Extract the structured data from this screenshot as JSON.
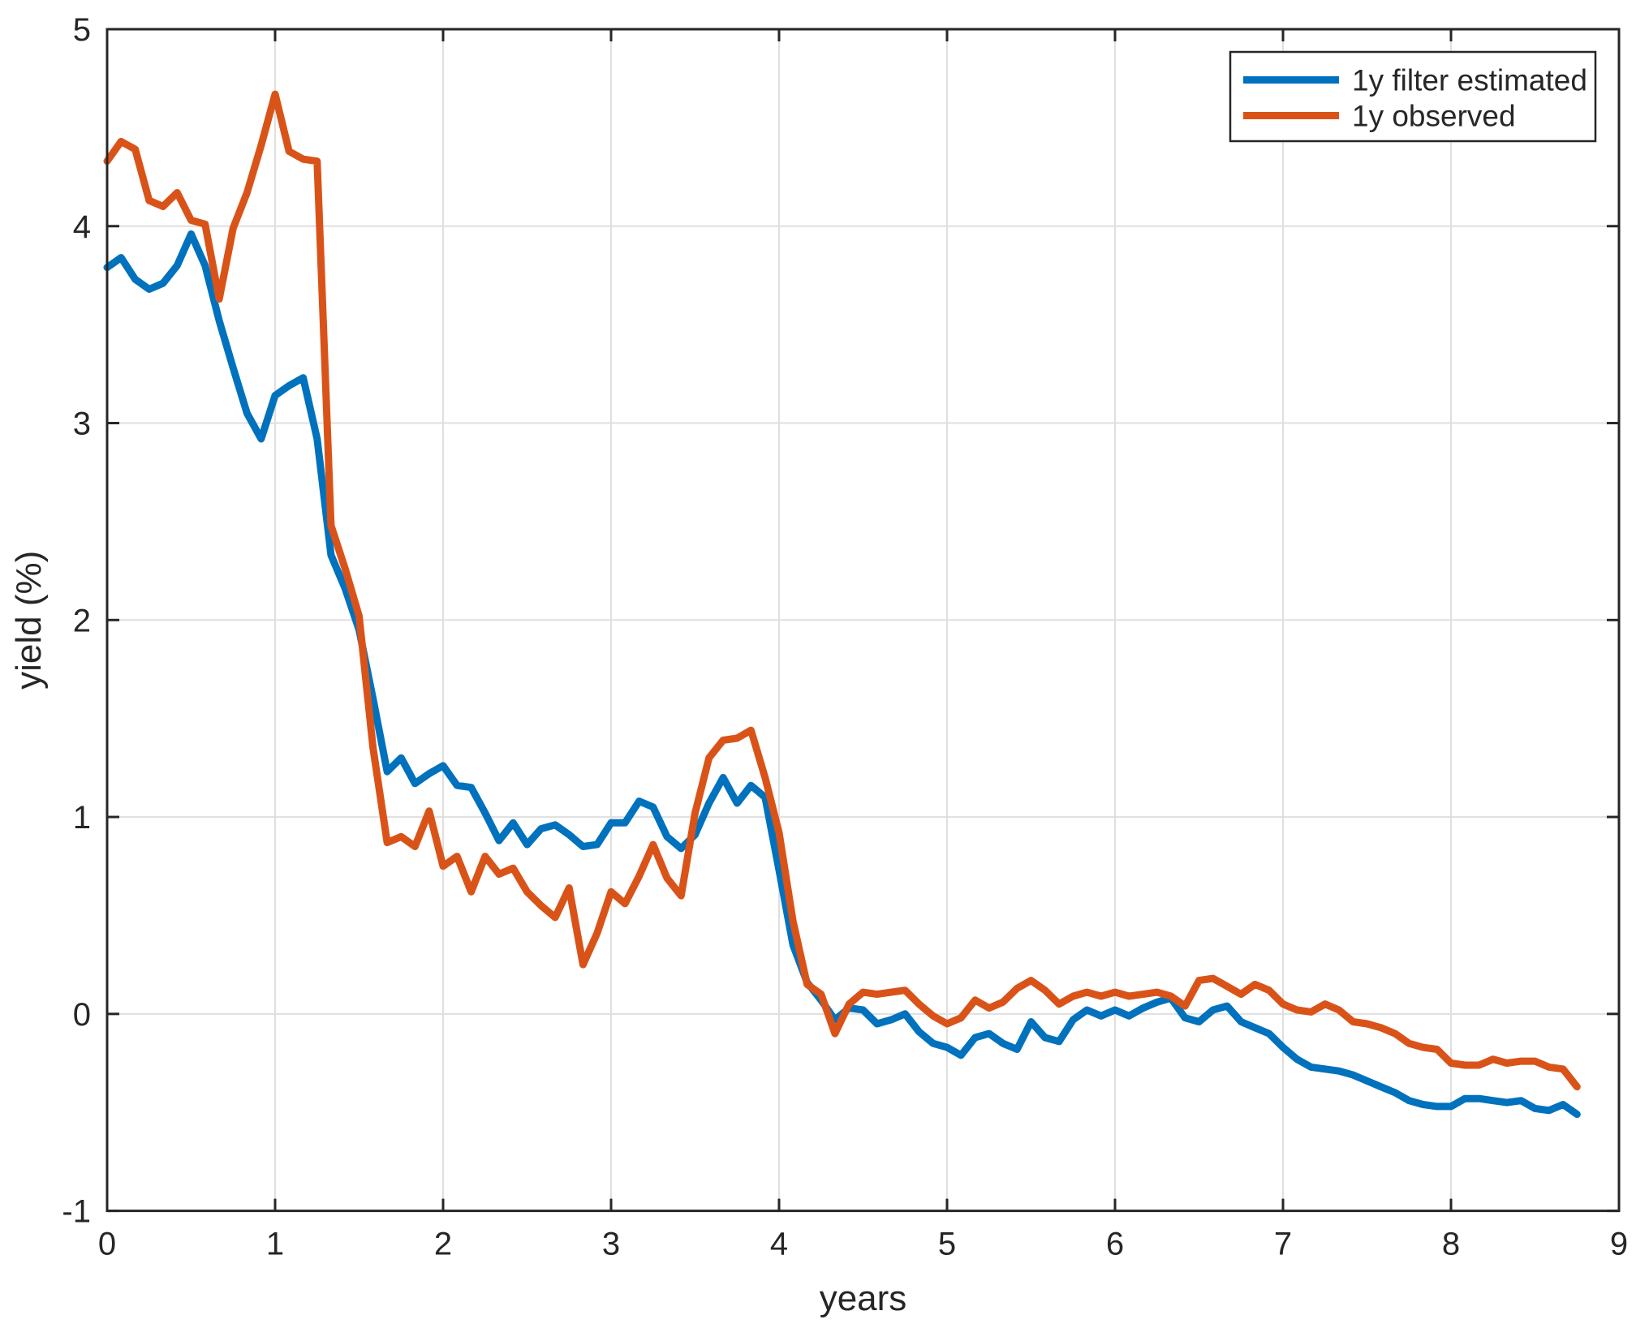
{
  "figure": {
    "background_color": "#ffffff",
    "axis_color": "#262626",
    "grid_color": "#dfdfdf"
  },
  "chart_data": {
    "type": "line",
    "title": "",
    "xlabel": "years",
    "ylabel": "yield (%)",
    "xlim": [
      0,
      9
    ],
    "ylim": [
      -1,
      5
    ],
    "xticks": [
      0,
      1,
      2,
      3,
      4,
      5,
      6,
      7,
      8,
      9
    ],
    "yticks": [
      -1,
      0,
      1,
      2,
      3,
      4,
      5
    ],
    "grid": true,
    "legend_position": "top-right",
    "x": [
      0,
      0.083,
      0.167,
      0.25,
      0.333,
      0.417,
      0.5,
      0.583,
      0.667,
      0.75,
      0.833,
      0.917,
      1,
      1.083,
      1.167,
      1.25,
      1.333,
      1.417,
      1.5,
      1.583,
      1.667,
      1.75,
      1.833,
      1.917,
      2,
      2.083,
      2.167,
      2.25,
      2.333,
      2.417,
      2.5,
      2.583,
      2.667,
      2.75,
      2.833,
      2.917,
      3,
      3.083,
      3.167,
      3.25,
      3.333,
      3.417,
      3.5,
      3.583,
      3.667,
      3.75,
      3.833,
      3.917,
      4,
      4.083,
      4.167,
      4.25,
      4.333,
      4.417,
      4.5,
      4.583,
      4.667,
      4.75,
      4.833,
      4.917,
      5,
      5.083,
      5.167,
      5.25,
      5.333,
      5.417,
      5.5,
      5.583,
      5.667,
      5.75,
      5.833,
      5.917,
      6,
      6.083,
      6.167,
      6.25,
      6.333,
      6.417,
      6.5,
      6.583,
      6.667,
      6.75,
      6.833,
      6.917,
      7,
      7.083,
      7.167,
      7.25,
      7.333,
      7.417,
      7.5,
      7.583,
      7.667,
      7.75,
      7.833,
      7.917,
      8,
      8.083,
      8.167,
      8.25,
      8.333,
      8.417,
      8.5,
      8.583,
      8.667,
      8.75
    ],
    "series": [
      {
        "name": "1y filter estimated",
        "color": "#0072BD",
        "values": [
          3.79,
          3.84,
          3.73,
          3.68,
          3.71,
          3.8,
          3.96,
          3.8,
          3.52,
          3.28,
          3.05,
          2.92,
          3.14,
          3.19,
          3.23,
          2.92,
          2.33,
          2.16,
          1.95,
          1.6,
          1.23,
          1.3,
          1.17,
          1.22,
          1.26,
          1.16,
          1.15,
          1.02,
          0.88,
          0.97,
          0.86,
          0.94,
          0.96,
          0.91,
          0.85,
          0.86,
          0.97,
          0.97,
          1.08,
          1.05,
          0.9,
          0.84,
          0.91,
          1.07,
          1.2,
          1.07,
          1.16,
          1.1,
          0.73,
          0.35,
          0.16,
          0.07,
          -0.03,
          0.03,
          0.02,
          -0.05,
          -0.03,
          0.0,
          -0.09,
          -0.15,
          -0.17,
          -0.21,
          -0.12,
          -0.1,
          -0.15,
          -0.18,
          -0.04,
          -0.12,
          -0.14,
          -0.03,
          0.02,
          -0.01,
          0.02,
          -0.01,
          0.03,
          0.06,
          0.08,
          -0.02,
          -0.04,
          0.02,
          0.04,
          -0.04,
          -0.07,
          -0.1,
          -0.17,
          -0.23,
          -0.27,
          -0.28,
          -0.29,
          -0.31,
          -0.34,
          -0.37,
          -0.4,
          -0.44,
          -0.46,
          -0.47,
          -0.47,
          -0.43,
          -0.43,
          -0.44,
          -0.45,
          -0.44,
          -0.48,
          -0.49,
          -0.46,
          -0.51
        ]
      },
      {
        "name": "1y observed",
        "color": "#D95319",
        "values": [
          4.33,
          4.43,
          4.39,
          4.13,
          4.1,
          4.17,
          4.03,
          4.01,
          3.63,
          3.99,
          4.17,
          4.41,
          4.67,
          4.38,
          4.34,
          4.33,
          2.48,
          2.26,
          2.02,
          1.35,
          0.87,
          0.9,
          0.85,
          1.03,
          0.75,
          0.8,
          0.62,
          0.8,
          0.71,
          0.74,
          0.62,
          0.55,
          0.49,
          0.64,
          0.25,
          0.41,
          0.62,
          0.56,
          0.7,
          0.86,
          0.69,
          0.6,
          1.02,
          1.3,
          1.39,
          1.4,
          1.44,
          1.2,
          0.92,
          0.47,
          0.15,
          0.1,
          -0.1,
          0.05,
          0.11,
          0.1,
          0.11,
          0.12,
          0.05,
          -0.01,
          -0.05,
          -0.02,
          0.07,
          0.03,
          0.06,
          0.13,
          0.17,
          0.12,
          0.05,
          0.09,
          0.11,
          0.09,
          0.11,
          0.09,
          0.1,
          0.11,
          0.09,
          0.04,
          0.17,
          0.18,
          0.14,
          0.1,
          0.15,
          0.12,
          0.05,
          0.02,
          0.01,
          0.05,
          0.02,
          -0.04,
          -0.05,
          -0.07,
          -0.1,
          -0.15,
          -0.17,
          -0.18,
          -0.25,
          -0.26,
          -0.26,
          -0.23,
          -0.25,
          -0.24,
          -0.24,
          -0.27,
          -0.28,
          -0.37
        ]
      }
    ]
  }
}
